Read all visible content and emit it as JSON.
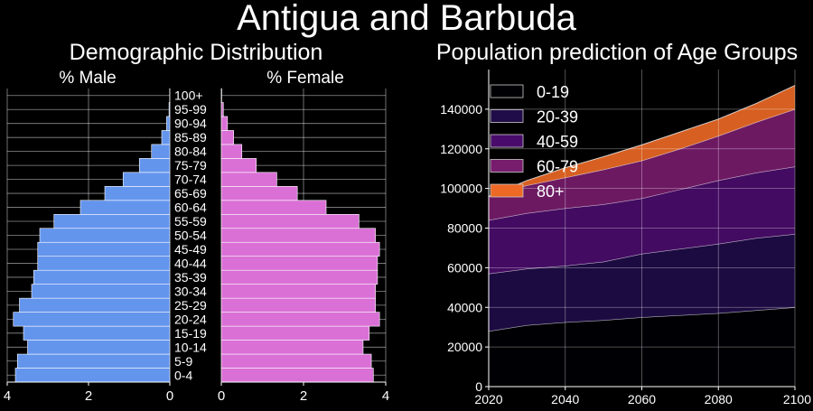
{
  "figure": {
    "suptitle": "Antigua and Barbuda"
  },
  "colors": {
    "male": "#6495ed",
    "female": "#da70d6",
    "edge": "#ffffff",
    "grid": "#ffffff",
    "background": "#000000"
  },
  "chart_data": [
    {
      "type": "bar",
      "orientation": "horizontal",
      "title": "Demographic Distribution",
      "subtitle": "% Male",
      "xlim": [
        4,
        0
      ],
      "xticks": [
        4,
        2,
        0
      ],
      "categories": [
        "0-4",
        "5-9",
        "10-14",
        "15-19",
        "20-24",
        "25-29",
        "30-34",
        "35-39",
        "40-44",
        "45-49",
        "50-54",
        "55-59",
        "60-64",
        "65-69",
        "70-74",
        "75-79",
        "80-84",
        "85-89",
        "90-94",
        "95-99",
        "100+"
      ],
      "values": [
        3.8,
        3.75,
        3.5,
        3.6,
        3.85,
        3.7,
        3.4,
        3.35,
        3.25,
        3.25,
        3.2,
        2.85,
        2.2,
        1.6,
        1.15,
        0.75,
        0.45,
        0.2,
        0.08,
        0.02,
        0.005
      ],
      "grid": true
    },
    {
      "type": "bar",
      "orientation": "horizontal",
      "subtitle": "% Female",
      "xlim": [
        0,
        4
      ],
      "xticks": [
        0,
        2,
        4
      ],
      "categories": [
        "0-4",
        "5-9",
        "10-14",
        "15-19",
        "20-24",
        "25-29",
        "30-34",
        "35-39",
        "40-44",
        "45-49",
        "50-54",
        "55-59",
        "60-64",
        "65-69",
        "70-74",
        "75-79",
        "80-84",
        "85-89",
        "90-94",
        "95-99",
        "100+"
      ],
      "values": [
        3.7,
        3.65,
        3.45,
        3.6,
        3.85,
        3.75,
        3.75,
        3.8,
        3.8,
        3.85,
        3.75,
        3.35,
        2.55,
        1.85,
        1.35,
        0.85,
        0.5,
        0.3,
        0.15,
        0.05,
        0.01
      ],
      "grid": true
    },
    {
      "type": "area",
      "stacked": true,
      "title": "Population prediction of Age Groups",
      "x": [
        2020,
        2030,
        2040,
        2050,
        2060,
        2070,
        2080,
        2090,
        2100
      ],
      "series": [
        {
          "name": "0-19",
          "color": "#000004",
          "values": [
            28000,
            31000,
            32500,
            33500,
            35000,
            36000,
            37000,
            38500,
            40000
          ]
        },
        {
          "name": "20-39",
          "color": "#1f0c48",
          "values": [
            29000,
            28500,
            28500,
            29500,
            32000,
            33500,
            35000,
            36500,
            37000
          ]
        },
        {
          "name": "40-59",
          "color": "#4a0c6b",
          "values": [
            27000,
            28000,
            29000,
            29000,
            28000,
            30000,
            32000,
            33000,
            34000
          ]
        },
        {
          "name": "60-79",
          "color": "#781c6d",
          "values": [
            12000,
            14000,
            15500,
            17500,
            19000,
            20500,
            22500,
            25500,
            29000
          ]
        },
        {
          "name": "80+",
          "color": "#ed6925",
          "values": [
            0,
            2500,
            5000,
            6500,
            8000,
            8500,
            8500,
            9500,
            12000
          ]
        }
      ],
      "xlim": [
        2020,
        2100
      ],
      "ylim": [
        0,
        160000
      ],
      "xticks": [
        2020,
        2040,
        2060,
        2080,
        2100
      ],
      "yticks": [
        0,
        20000,
        40000,
        60000,
        80000,
        100000,
        120000,
        140000
      ],
      "legend": "top-left",
      "grid": true
    }
  ]
}
